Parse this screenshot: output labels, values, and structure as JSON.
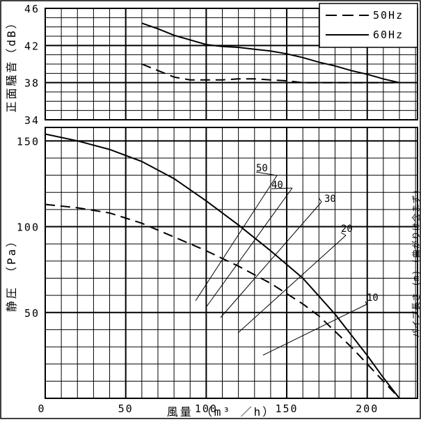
{
  "chart_data": [
    {
      "type": "line",
      "ylabel": "正面騒音（dB）",
      "xlim": [
        0,
        220
      ],
      "ylim": [
        34,
        46
      ],
      "y_ticks": [
        "46",
        "42",
        "38",
        "34"
      ],
      "grid": true,
      "legend_position": "top-right",
      "series": [
        {
          "name": "50Hz",
          "style": "dashed",
          "x": [
            60,
            70,
            80,
            90,
            100,
            110,
            120,
            130,
            140,
            150,
            160,
            170,
            180,
            190,
            200,
            210,
            220
          ],
          "y": [
            40.0,
            39.3,
            38.6,
            38.3,
            38.3,
            38.3,
            38.4,
            38.4,
            38.3,
            38.2,
            38.0,
            38.0,
            38.0,
            38.0,
            38.0,
            38.0,
            38.0
          ]
        },
        {
          "name": "60Hz",
          "style": "solid",
          "x": [
            60,
            70,
            80,
            90,
            100,
            110,
            120,
            130,
            140,
            150,
            160,
            170,
            180,
            190,
            200,
            210,
            220
          ],
          "y": [
            44.4,
            43.8,
            43.1,
            42.6,
            42.1,
            41.9,
            41.8,
            41.6,
            41.4,
            41.1,
            40.7,
            40.2,
            39.8,
            39.3,
            38.9,
            38.4,
            38.0
          ]
        }
      ]
    },
    {
      "type": "line",
      "xlabel": "風量　（m³ ／h）",
      "ylabel": "静圧　（Pa）",
      "xlim": [
        0,
        220
      ],
      "ylim": [
        0,
        155
      ],
      "x_ticks": [
        "0",
        "50",
        "100",
        "150",
        "200"
      ],
      "y_ticks": [
        "150",
        "100",
        "50"
      ],
      "grid": true,
      "series": [
        {
          "name": "50Hz",
          "style": "dashed",
          "x": [
            0,
            20,
            40,
            60,
            80,
            100,
            120,
            140,
            160,
            170,
            180,
            190,
            200,
            210,
            220
          ],
          "y": [
            113,
            111,
            108,
            102,
            94,
            86,
            77,
            67,
            55,
            48,
            39,
            30,
            20,
            10,
            0
          ]
        },
        {
          "name": "60Hz",
          "style": "solid",
          "x": [
            0,
            20,
            40,
            60,
            80,
            100,
            120,
            140,
            160,
            180,
            190,
            200,
            210,
            220
          ],
          "y": [
            154,
            150,
            145,
            138,
            128,
            115,
            101,
            86,
            70,
            49,
            37,
            25,
            12,
            0
          ]
        }
      ],
      "duct_length_labels": [
        "50",
        "40",
        "30",
        "20",
        "10"
      ],
      "right_note": "パイプ長さ (m) (曲がりは含まず)"
    }
  ]
}
